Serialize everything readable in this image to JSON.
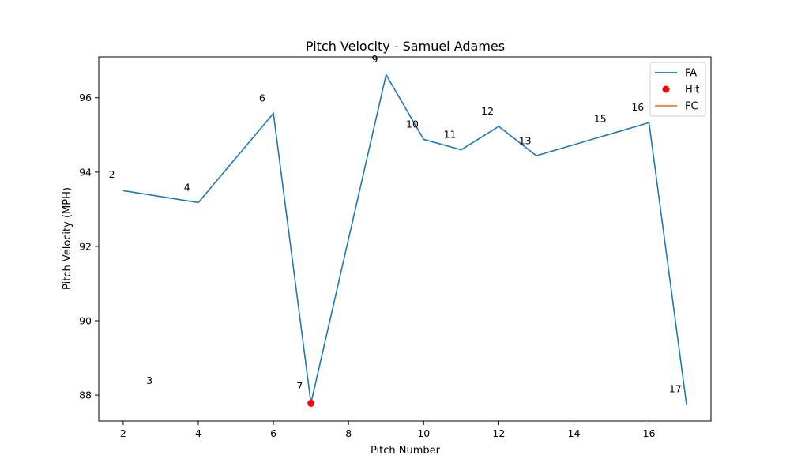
{
  "chart_data": {
    "type": "line",
    "title": "Pitch Velocity - Samuel Adames",
    "xlabel": "Pitch Number",
    "ylabel": "Pitch Velocity (MPH)",
    "xlim": [
      1.35,
      17.65
    ],
    "ylim": [
      87.3,
      97.1
    ],
    "xticks": [
      2,
      4,
      6,
      8,
      10,
      12,
      14,
      16
    ],
    "yticks": [
      88,
      90,
      92,
      94,
      96
    ],
    "grid": false,
    "legend_position": "top-right",
    "series": [
      {
        "name": "FA",
        "kind": "line",
        "color": "#1f77b4",
        "x": [
          2,
          4,
          6,
          7,
          9,
          10,
          11,
          12,
          13,
          16,
          17
        ],
        "y": [
          93.5,
          93.18,
          95.58,
          87.78,
          96.62,
          94.88,
          94.6,
          95.23,
          94.44,
          95.33,
          87.73
        ]
      },
      {
        "name": "Hit",
        "kind": "scatter",
        "color": "#ff0000",
        "x": [
          7
        ],
        "y": [
          87.78
        ]
      },
      {
        "name": "FC",
        "kind": "line",
        "color": "#ff7f0e",
        "x": [],
        "y": []
      }
    ],
    "annotations": [
      {
        "text": "2",
        "x": 1.7,
        "y": 93.85
      },
      {
        "text": "3",
        "x": 2.7,
        "y": 88.3
      },
      {
        "text": "4",
        "x": 3.7,
        "y": 93.5
      },
      {
        "text": "6",
        "x": 5.7,
        "y": 95.9
      },
      {
        "text": "7",
        "x": 6.7,
        "y": 88.15
      },
      {
        "text": "9",
        "x": 8.7,
        "y": 96.95
      },
      {
        "text": "10",
        "x": 9.7,
        "y": 95.2
      },
      {
        "text": "11",
        "x": 10.7,
        "y": 94.92
      },
      {
        "text": "12",
        "x": 11.7,
        "y": 95.55
      },
      {
        "text": "13",
        "x": 12.7,
        "y": 94.75
      },
      {
        "text": "15",
        "x": 14.7,
        "y": 95.35
      },
      {
        "text": "16",
        "x": 15.7,
        "y": 95.65
      },
      {
        "text": "17",
        "x": 16.7,
        "y": 88.08
      }
    ]
  }
}
